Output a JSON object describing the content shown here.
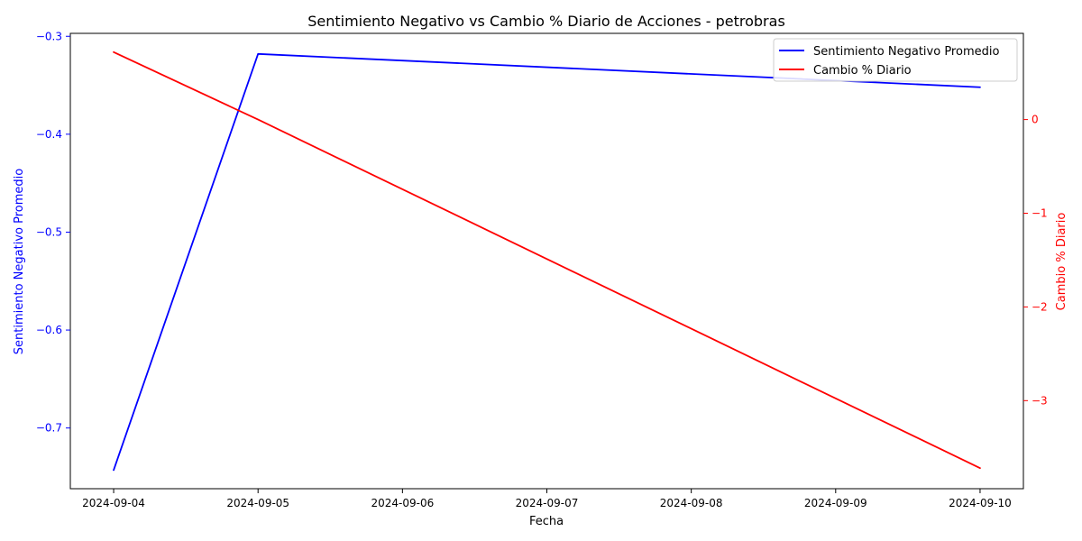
{
  "chart_data": {
    "type": "line",
    "title": "Sentimiento Negativo vs Cambio % Diario de Acciones - petrobras",
    "xlabel": "Fecha",
    "ylabel_left": "Sentimiento Negativo Promedio",
    "ylabel_right": "Cambio % Diario",
    "x_ticks": [
      "2024-09-04",
      "2024-09-05",
      "2024-09-06",
      "2024-09-07",
      "2024-09-08",
      "2024-09-09",
      "2024-09-10"
    ],
    "y_left_ticks": [
      "−0.7",
      "−0.6",
      "−0.5",
      "−0.4",
      "−0.3"
    ],
    "y_right_ticks": [
      "−3",
      "−2",
      "−1",
      "0"
    ],
    "y_left_lim": [
      -0.762,
      -0.297
    ],
    "y_right_lim": [
      -3.94,
      0.92
    ],
    "x_lim": [
      "2024-09-03T16:48",
      "2024-09-10T07:12"
    ],
    "legend_position": "upper right",
    "grid": false,
    "series": [
      {
        "name": "Sentimiento Negativo Promedio",
        "axis": "left",
        "color": "#0000ff",
        "points": [
          {
            "x": "2024-09-04",
            "y": -0.743
          },
          {
            "x": "2024-09-05",
            "y": -0.318
          },
          {
            "x": "2024-09-10",
            "y": -0.352
          }
        ]
      },
      {
        "name": "Cambio % Diario",
        "axis": "right",
        "color": "#ff0000",
        "points": [
          {
            "x": "2024-09-04",
            "y": 0.72
          },
          {
            "x": "2024-09-05",
            "y": 0.0
          },
          {
            "x": "2024-09-10",
            "y": -3.72
          }
        ]
      }
    ]
  }
}
